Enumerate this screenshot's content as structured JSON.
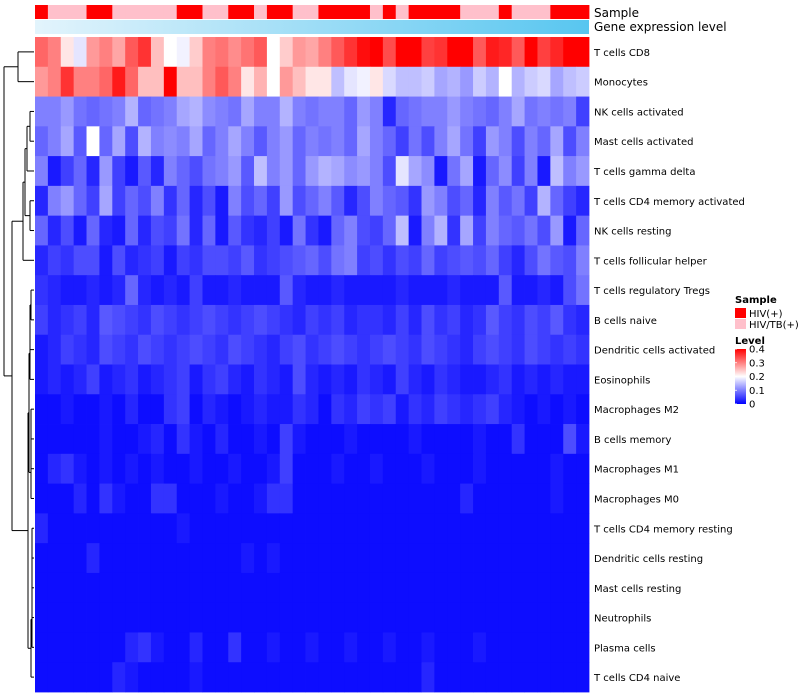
{
  "chart_data": {
    "type": "heatmap",
    "title": "",
    "annotation_labels": {
      "sample": "Sample",
      "gene_expression": "Gene expression level"
    },
    "legend_sample": {
      "title": "Sample",
      "entries": [
        {
          "label": "HIV(+)",
          "color": "#ff0000"
        },
        {
          "label": "HIV/TB(+)",
          "color": "#ffc0cb"
        }
      ]
    },
    "legend_level": {
      "title": "Level",
      "ticks": [
        "0.4",
        "0.3",
        "0.2",
        "0.1",
        "0"
      ],
      "tick_values": [
        0.4,
        0.3,
        0.2,
        0.1,
        0
      ],
      "range": [
        0,
        0.4
      ]
    },
    "colors": {
      "low": "#0000ff",
      "mid": "#ffffff",
      "high": "#ff0000",
      "gene_expr_start": "#e3f4fc",
      "gene_expr_end": "#58c6f0"
    },
    "samples": [
      "H",
      "T",
      "T",
      "T",
      "H",
      "H",
      "T",
      "T",
      "T",
      "T",
      "T",
      "H",
      "H",
      "T",
      "T",
      "H",
      "H",
      "T",
      "H",
      "H",
      "T",
      "T",
      "H",
      "H",
      "H",
      "H",
      "T",
      "H",
      "T",
      "H",
      "H",
      "H",
      "H",
      "T",
      "T",
      "T",
      "H",
      "T",
      "T",
      "T",
      "H",
      "H",
      "H"
    ],
    "rows": [
      {
        "label": "T cells CD8",
        "values": [
          0.32,
          0.3,
          0.22,
          0.18,
          0.28,
          0.3,
          0.27,
          0.33,
          0.36,
          0.25,
          0.2,
          0.19,
          0.24,
          0.3,
          0.31,
          0.29,
          0.31,
          0.33,
          0.2,
          0.24,
          0.28,
          0.27,
          0.3,
          0.33,
          0.36,
          0.39,
          0.4,
          0.34,
          0.41,
          0.4,
          0.35,
          0.36,
          0.41,
          0.4,
          0.33,
          0.38,
          0.37,
          0.33,
          0.4,
          0.35,
          0.37,
          0.4,
          0.42
        ]
      },
      {
        "label": "Monocytes",
        "values": [
          0.28,
          0.3,
          0.36,
          0.3,
          0.3,
          0.32,
          0.38,
          0.32,
          0.25,
          0.25,
          0.4,
          0.25,
          0.25,
          0.3,
          0.33,
          0.3,
          0.22,
          0.26,
          0.2,
          0.28,
          0.25,
          0.22,
          0.22,
          0.15,
          0.18,
          0.19,
          0.22,
          0.17,
          0.15,
          0.15,
          0.16,
          0.13,
          0.14,
          0.12,
          0.16,
          0.14,
          0.2,
          0.14,
          0.16,
          0.17,
          0.13,
          0.15,
          0.16
        ]
      },
      {
        "label": "NK cells activated",
        "values": [
          0.1,
          0.1,
          0.12,
          0.09,
          0.08,
          0.09,
          0.1,
          0.14,
          0.08,
          0.09,
          0.1,
          0.13,
          0.14,
          0.11,
          0.1,
          0.09,
          0.13,
          0.1,
          0.1,
          0.14,
          0.1,
          0.09,
          0.1,
          0.1,
          0.08,
          0.12,
          0.1,
          0.03,
          0.08,
          0.09,
          0.1,
          0.1,
          0.12,
          0.1,
          0.09,
          0.08,
          0.1,
          0.13,
          0.09,
          0.1,
          0.09,
          0.1,
          0.05
        ]
      },
      {
        "label": "Mast cells activated",
        "values": [
          0.08,
          0.1,
          0.13,
          0.07,
          0.2,
          0.08,
          0.13,
          0.06,
          0.14,
          0.1,
          0.11,
          0.1,
          0.13,
          0.08,
          0.1,
          0.13,
          0.1,
          0.07,
          0.1,
          0.12,
          0.08,
          0.1,
          0.09,
          0.1,
          0.08,
          0.13,
          0.1,
          0.08,
          0.05,
          0.09,
          0.06,
          0.1,
          0.13,
          0.09,
          0.05,
          0.12,
          0.1,
          0.06,
          0.1,
          0.08,
          0.13,
          0.06,
          0.1
        ]
      },
      {
        "label": "T cells gamma delta",
        "values": [
          0.1,
          0.02,
          0.05,
          0.08,
          0.03,
          0.12,
          0.05,
          0.02,
          0.07,
          0.03,
          0.1,
          0.08,
          0.06,
          0.09,
          0.1,
          0.12,
          0.07,
          0.15,
          0.1,
          0.12,
          0.08,
          0.12,
          0.14,
          0.13,
          0.11,
          0.12,
          0.1,
          0.06,
          0.18,
          0.13,
          0.11,
          0.02,
          0.09,
          0.13,
          0.02,
          0.08,
          0.11,
          0.05,
          0.1,
          0.02,
          0.15,
          0.1,
          0.12
        ]
      },
      {
        "label": "T cells CD4 memory activated",
        "values": [
          0.03,
          0.1,
          0.12,
          0.08,
          0.05,
          0.13,
          0.05,
          0.08,
          0.06,
          0.1,
          0.04,
          0.08,
          0.03,
          0.06,
          0.02,
          0.1,
          0.06,
          0.08,
          0.05,
          0.12,
          0.06,
          0.08,
          0.1,
          0.07,
          0.03,
          0.06,
          0.1,
          0.08,
          0.07,
          0.04,
          0.12,
          0.1,
          0.06,
          0.08,
          0.03,
          0.1,
          0.07,
          0.09,
          0.05,
          0.14,
          0.08,
          0.05,
          0.03
        ]
      },
      {
        "label": "NK cells resting",
        "values": [
          0.08,
          0.03,
          0.06,
          0.02,
          0.08,
          0.03,
          0.02,
          0.08,
          0.03,
          0.06,
          0.05,
          0.09,
          0.03,
          0.08,
          0.02,
          0.07,
          0.04,
          0.03,
          0.05,
          0.02,
          0.09,
          0.04,
          0.02,
          0.08,
          0.1,
          0.06,
          0.05,
          0.08,
          0.15,
          0.02,
          0.1,
          0.14,
          0.04,
          0.13,
          0.05,
          0.1,
          0.08,
          0.07,
          0.09,
          0.06,
          0.12,
          0.02,
          0.08
        ]
      },
      {
        "label": "T cells follicular helper",
        "values": [
          0.03,
          0.05,
          0.04,
          0.06,
          0.06,
          0.02,
          0.06,
          0.03,
          0.04,
          0.05,
          0.02,
          0.05,
          0.04,
          0.06,
          0.06,
          0.05,
          0.07,
          0.04,
          0.05,
          0.06,
          0.07,
          0.08,
          0.06,
          0.09,
          0.1,
          0.05,
          0.06,
          0.04,
          0.06,
          0.05,
          0.08,
          0.05,
          0.06,
          0.07,
          0.06,
          0.08,
          0.05,
          0.03,
          0.06,
          0.09,
          0.07,
          0.06,
          0.1
        ]
      },
      {
        "label": "T cells regulatory  Tregs",
        "values": [
          0.04,
          0.03,
          0.02,
          0.02,
          0.03,
          0.02,
          0.03,
          0.08,
          0.03,
          0.02,
          0.03,
          0.02,
          0.05,
          0.02,
          0.02,
          0.03,
          0.02,
          0.02,
          0.02,
          0.07,
          0.03,
          0.02,
          0.02,
          0.03,
          0.02,
          0.02,
          0.02,
          0.02,
          0.03,
          0.02,
          0.02,
          0.02,
          0.03,
          0.02,
          0.02,
          0.02,
          0.07,
          0.02,
          0.02,
          0.03,
          0.02,
          0.06,
          0.09
        ]
      },
      {
        "label": "B cells naive",
        "values": [
          0.05,
          0.03,
          0.04,
          0.05,
          0.03,
          0.07,
          0.06,
          0.05,
          0.04,
          0.06,
          0.05,
          0.04,
          0.05,
          0.06,
          0.05,
          0.04,
          0.05,
          0.06,
          0.05,
          0.04,
          0.03,
          0.05,
          0.04,
          0.05,
          0.03,
          0.04,
          0.04,
          0.03,
          0.05,
          0.03,
          0.06,
          0.04,
          0.05,
          0.03,
          0.04,
          0.07,
          0.05,
          0.04,
          0.06,
          0.05,
          0.07,
          0.04,
          0.03
        ]
      },
      {
        "label": "Dendritic cells activated",
        "values": [
          0.02,
          0.03,
          0.05,
          0.04,
          0.03,
          0.06,
          0.05,
          0.04,
          0.06,
          0.05,
          0.04,
          0.05,
          0.06,
          0.05,
          0.04,
          0.06,
          0.05,
          0.04,
          0.03,
          0.05,
          0.06,
          0.04,
          0.05,
          0.06,
          0.05,
          0.04,
          0.05,
          0.06,
          0.05,
          0.04,
          0.06,
          0.05,
          0.04,
          0.03,
          0.05,
          0.06,
          0.05,
          0.04,
          0.06,
          0.05,
          0.04,
          0.05,
          0.04
        ]
      },
      {
        "label": "Eosinophils",
        "values": [
          0.02,
          0.03,
          0.02,
          0.03,
          0.05,
          0.02,
          0.03,
          0.04,
          0.02,
          0.03,
          0.04,
          0.05,
          0.02,
          0.04,
          0.05,
          0.03,
          0.02,
          0.04,
          0.03,
          0.02,
          0.06,
          0.03,
          0.02,
          0.03,
          0.02,
          0.04,
          0.03,
          0.02,
          0.05,
          0.03,
          0.02,
          0.04,
          0.03,
          0.02,
          0.02,
          0.03,
          0.04,
          0.02,
          0.03,
          0.02,
          0.03,
          0.02,
          0.02
        ]
      },
      {
        "label": "Macrophages M2",
        "values": [
          0.01,
          0.01,
          0.02,
          0.01,
          0.01,
          0.02,
          0.01,
          0.03,
          0.01,
          0.01,
          0.04,
          0.05,
          0.01,
          0.03,
          0.02,
          0.01,
          0.02,
          0.03,
          0.02,
          0.02,
          0.04,
          0.03,
          0.01,
          0.04,
          0.03,
          0.05,
          0.04,
          0.05,
          0.02,
          0.04,
          0.03,
          0.05,
          0.04,
          0.03,
          0.04,
          0.05,
          0.03,
          0.02,
          0.01,
          0.02,
          0.01,
          0.02,
          0.01
        ]
      },
      {
        "label": "B cells memory",
        "values": [
          0.01,
          0.01,
          0.01,
          0.01,
          0.01,
          0.02,
          0.01,
          0.01,
          0.02,
          0.03,
          0.01,
          0.04,
          0.02,
          0.01,
          0.03,
          0.01,
          0.01,
          0.02,
          0.01,
          0.05,
          0.02,
          0.01,
          0.01,
          0.01,
          0.02,
          0.01,
          0.01,
          0.01,
          0.01,
          0.02,
          0.01,
          0.01,
          0.01,
          0.01,
          0.02,
          0.01,
          0.01,
          0.04,
          0.01,
          0.01,
          0.01,
          0.06,
          0.02
        ]
      },
      {
        "label": "Macrophages M1",
        "values": [
          0.01,
          0.03,
          0.04,
          0.02,
          0.01,
          0.02,
          0.01,
          0.02,
          0.01,
          0.02,
          0.01,
          0.01,
          0.02,
          0.01,
          0.01,
          0.02,
          0.01,
          0.01,
          0.02,
          0.05,
          0.01,
          0.01,
          0.01,
          0.02,
          0.01,
          0.01,
          0.02,
          0.01,
          0.01,
          0.01,
          0.02,
          0.01,
          0.01,
          0.01,
          0.02,
          0.01,
          0.01,
          0.01,
          0.01,
          0.01,
          0.02,
          0.01,
          0.01
        ]
      },
      {
        "label": "Macrophages M0",
        "values": [
          0.01,
          0.01,
          0.01,
          0.03,
          0.01,
          0.04,
          0.02,
          0.01,
          0.01,
          0.04,
          0.04,
          0.01,
          0.01,
          0.01,
          0.02,
          0.01,
          0.01,
          0.02,
          0.04,
          0.04,
          0.01,
          0.01,
          0.01,
          0.01,
          0.01,
          0.01,
          0.01,
          0.01,
          0.01,
          0.01,
          0.01,
          0.01,
          0.01,
          0.03,
          0.01,
          0.01,
          0.01,
          0.01,
          0.01,
          0.01,
          0.02,
          0.01,
          0.01
        ]
      },
      {
        "label": "T cells CD4 memory resting",
        "values": [
          0.03,
          0.01,
          0.01,
          0.01,
          0.01,
          0.01,
          0.01,
          0.01,
          0.01,
          0.01,
          0.01,
          0.02,
          0.01,
          0.01,
          0.01,
          0.01,
          0.01,
          0.01,
          0.01,
          0.01,
          0.01,
          0.01,
          0.01,
          0.01,
          0.01,
          0.01,
          0.01,
          0.01,
          0.01,
          0.01,
          0.01,
          0.01,
          0.01,
          0.01,
          0.01,
          0.01,
          0.01,
          0.01,
          0.01,
          0.01,
          0.01,
          0.01,
          0.01
        ]
      },
      {
        "label": "Dendritic cells resting",
        "values": [
          0.01,
          0.01,
          0.01,
          0.01,
          0.03,
          0.01,
          0.01,
          0.01,
          0.01,
          0.01,
          0.01,
          0.01,
          0.01,
          0.01,
          0.01,
          0.01,
          0.02,
          0.01,
          0.02,
          0.01,
          0.01,
          0.01,
          0.01,
          0.01,
          0.01,
          0.01,
          0.01,
          0.01,
          0.01,
          0.01,
          0.01,
          0.01,
          0.01,
          0.01,
          0.01,
          0.01,
          0.01,
          0.01,
          0.01,
          0.01,
          0.01,
          0.01,
          0.01
        ]
      },
      {
        "label": "Mast cells resting",
        "values": [
          0.01,
          0.01,
          0.01,
          0.01,
          0.01,
          0.01,
          0.01,
          0.01,
          0.01,
          0.01,
          0.01,
          0.01,
          0.01,
          0.01,
          0.01,
          0.01,
          0.01,
          0.01,
          0.01,
          0.01,
          0.01,
          0.01,
          0.01,
          0.01,
          0.01,
          0.01,
          0.01,
          0.01,
          0.01,
          0.01,
          0.01,
          0.01,
          0.01,
          0.01,
          0.01,
          0.01,
          0.01,
          0.01,
          0.01,
          0.01,
          0.01,
          0.01,
          0.01
        ]
      },
      {
        "label": "Neutrophils",
        "values": [
          0.01,
          0.01,
          0.01,
          0.01,
          0.01,
          0.01,
          0.01,
          0.01,
          0.01,
          0.01,
          0.01,
          0.01,
          0.01,
          0.01,
          0.01,
          0.01,
          0.01,
          0.01,
          0.01,
          0.01,
          0.01,
          0.01,
          0.01,
          0.01,
          0.01,
          0.01,
          0.01,
          0.01,
          0.01,
          0.01,
          0.01,
          0.01,
          0.01,
          0.01,
          0.01,
          0.01,
          0.01,
          0.01,
          0.01,
          0.01,
          0.01,
          0.01,
          0.01
        ]
      },
      {
        "label": "Plasma cells",
        "values": [
          0.01,
          0.01,
          0.01,
          0.01,
          0.01,
          0.01,
          0.01,
          0.03,
          0.04,
          0.02,
          0.01,
          0.01,
          0.03,
          0.01,
          0.01,
          0.04,
          0.01,
          0.01,
          0.02,
          0.01,
          0.01,
          0.02,
          0.01,
          0.01,
          0.02,
          0.01,
          0.01,
          0.02,
          0.01,
          0.01,
          0.02,
          0.01,
          0.01,
          0.01,
          0.02,
          0.01,
          0.01,
          0.01,
          0.01,
          0.01,
          0.01,
          0.01,
          0.01
        ]
      },
      {
        "label": "T cells CD4 naive",
        "values": [
          0.01,
          0.01,
          0.01,
          0.01,
          0.01,
          0.01,
          0.03,
          0.02,
          0.01,
          0.01,
          0.01,
          0.01,
          0.02,
          0.01,
          0.01,
          0.01,
          0.01,
          0.01,
          0.01,
          0.01,
          0.01,
          0.01,
          0.01,
          0.01,
          0.01,
          0.01,
          0.01,
          0.01,
          0.01,
          0.01,
          0.03,
          0.01,
          0.01,
          0.01,
          0.01,
          0.01,
          0.01,
          0.01,
          0.01,
          0.01,
          0.01,
          0.01,
          0.01
        ]
      }
    ]
  }
}
